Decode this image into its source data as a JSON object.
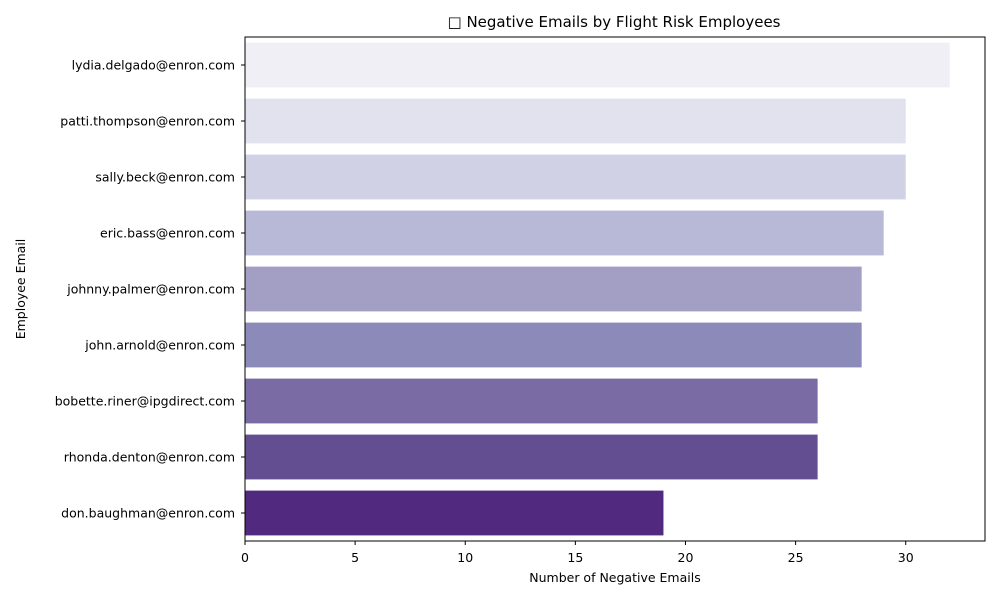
{
  "chart_data": {
    "type": "bar",
    "orientation": "horizontal",
    "title": "□ Negative Emails by Flight Risk Employees",
    "xlabel": "Number of Negative Emails",
    "ylabel": "Employee Email",
    "xlim": [
      0,
      33.6
    ],
    "xticks": [
      0,
      5,
      10,
      15,
      20,
      25,
      30
    ],
    "grid": false,
    "categories": [
      "lydia.delgado@enron.com",
      "patti.thompson@enron.com",
      "sally.beck@enron.com",
      "eric.bass@enron.com",
      "johnny.palmer@enron.com",
      "john.arnold@enron.com",
      "bobette.riner@ipgdirect.com",
      "rhonda.denton@enron.com",
      "don.baughman@enron.com"
    ],
    "values": [
      32,
      30,
      30,
      29,
      28,
      28,
      26,
      26,
      19
    ],
    "colors": [
      "#f1eff6",
      "#e2e1ee",
      "#d0d1e4",
      "#b8b8d7",
      "#a39fc4",
      "#8c8ab9",
      "#7a6ba4",
      "#634e91",
      "#51297f"
    ]
  }
}
